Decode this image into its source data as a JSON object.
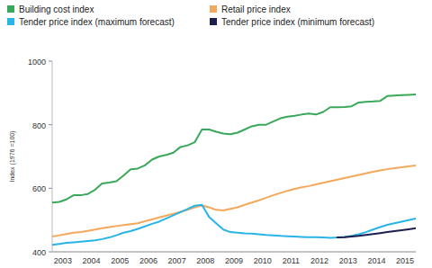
{
  "chart_data": {
    "type": "line",
    "y_label": "Index (1976 =100)",
    "categories": [
      null,
      "2003",
      null,
      null,
      null,
      "2004",
      null,
      null,
      null,
      "2005",
      null,
      null,
      null,
      "2006",
      null,
      null,
      null,
      "2007",
      null,
      null,
      null,
      "2008",
      null,
      null,
      null,
      "2009",
      null,
      null,
      null,
      "2010",
      null,
      null,
      null,
      "2011",
      null,
      null,
      null,
      "2012",
      null,
      null,
      null,
      "2013",
      null,
      null,
      null,
      "2014",
      null,
      null,
      null,
      "2015",
      null,
      null
    ],
    "ylim": [
      400,
      1000
    ],
    "yticks": [
      400,
      600,
      800,
      1000
    ],
    "grid": false,
    "legend": "top",
    "series": [
      {
        "name": "Building cost index",
        "color": "#3aa85a",
        "values": [
          555,
          557,
          565,
          578,
          578,
          582,
          595,
          615,
          618,
          622,
          640,
          660,
          662,
          672,
          690,
          700,
          705,
          712,
          730,
          735,
          745,
          785,
          785,
          778,
          772,
          770,
          775,
          785,
          795,
          800,
          800,
          810,
          820,
          825,
          828,
          832,
          835,
          832,
          840,
          855,
          855,
          856,
          858,
          870,
          872,
          873,
          875,
          890,
          892,
          893,
          894,
          895
        ]
      },
      {
        "name": "Retail price index",
        "color": "#f4a85c",
        "values": [
          448,
          452,
          456,
          460,
          462,
          466,
          470,
          474,
          478,
          481,
          484,
          487,
          490,
          496,
          502,
          508,
          514,
          520,
          526,
          532,
          540,
          546,
          540,
          532,
          530,
          535,
          540,
          548,
          555,
          562,
          570,
          578,
          585,
          592,
          598,
          603,
          607,
          612,
          617,
          622,
          627,
          632,
          637,
          642,
          647,
          652,
          656,
          660,
          663,
          666,
          669,
          672
        ]
      },
      {
        "name": "Tender price index (maximum forecast)",
        "color": "#29b4e6",
        "values": [
          422,
          425,
          428,
          430,
          432,
          434,
          436,
          440,
          445,
          452,
          460,
          465,
          472,
          480,
          488,
          495,
          505,
          515,
          525,
          535,
          545,
          548,
          510,
          490,
          470,
          462,
          460,
          458,
          457,
          455,
          453,
          452,
          450,
          449,
          448,
          447,
          446,
          446,
          445,
          444,
          445,
          447,
          450,
          455,
          462,
          470,
          478,
          485,
          490,
          495,
          500,
          505
        ]
      },
      {
        "name": "Tender price index (minimum forecast)",
        "color": "#1c1f4d",
        "values": [
          null,
          null,
          null,
          null,
          null,
          null,
          null,
          null,
          null,
          null,
          null,
          null,
          null,
          null,
          null,
          null,
          null,
          null,
          null,
          null,
          null,
          null,
          null,
          null,
          null,
          null,
          null,
          null,
          null,
          null,
          null,
          null,
          null,
          null,
          null,
          null,
          null,
          null,
          null,
          null,
          445,
          446,
          448,
          450,
          453,
          456,
          459,
          462,
          465,
          468,
          471,
          474
        ]
      }
    ]
  }
}
